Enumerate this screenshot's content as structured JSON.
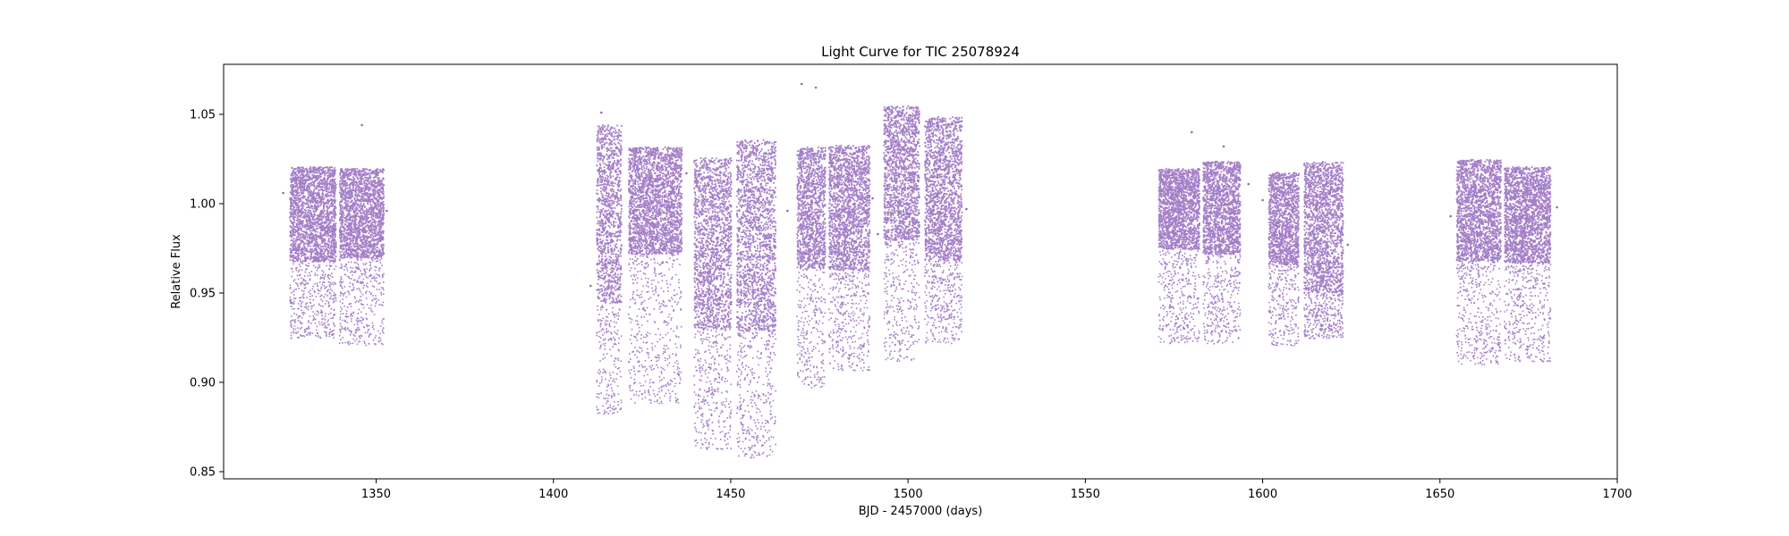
{
  "chart_data": {
    "type": "scatter",
    "title": "Light Curve for TIC 25078924",
    "xlabel": "BJD - 2457000 (days)",
    "ylabel": "Relative Flux",
    "xlim": [
      1307,
      1700
    ],
    "ylim": [
      0.846,
      1.078
    ],
    "x_ticks": [
      1350,
      1400,
      1450,
      1500,
      1550,
      1600,
      1650,
      1700
    ],
    "y_ticks": [
      0.85,
      0.9,
      0.95,
      1.0,
      1.05
    ],
    "x_tick_labels": [
      "1350",
      "1400",
      "1450",
      "1500",
      "1550",
      "1600",
      "1650",
      "1700"
    ],
    "y_tick_labels": [
      "0.85",
      "0.90",
      "0.95",
      "1.00",
      "1.05"
    ],
    "grid": false,
    "legend": "none",
    "marker_color": "#9467bd",
    "series": [
      {
        "segments": [
          {
            "x_start": 1325.5,
            "x_end": 1338.5,
            "upper_max": 1.021,
            "upper_min": 0.968,
            "lower_min": 0.925
          },
          {
            "x_start": 1339.5,
            "x_end": 1352.0,
            "upper_max": 1.02,
            "upper_min": 0.97,
            "lower_min": 0.921
          },
          {
            "x_start": 1412.0,
            "x_end": 1419.0,
            "upper_max": 1.045,
            "upper_min": 0.945,
            "lower_min": 0.882
          },
          {
            "x_start": 1421.0,
            "x_end": 1436.0,
            "upper_max": 1.032,
            "upper_min": 0.972,
            "lower_min": 0.888
          },
          {
            "x_start": 1439.5,
            "x_end": 1450.0,
            "upper_max": 1.026,
            "upper_min": 0.93,
            "lower_min": 0.863
          },
          {
            "x_start": 1451.5,
            "x_end": 1462.5,
            "upper_max": 1.036,
            "upper_min": 0.929,
            "lower_min": 0.858
          },
          {
            "x_start": 1468.5,
            "x_end": 1476.5,
            "upper_max": 1.032,
            "upper_min": 0.964,
            "lower_min": 0.897
          },
          {
            "x_start": 1477.5,
            "x_end": 1489.0,
            "upper_max": 1.033,
            "upper_min": 0.963,
            "lower_min": 0.907
          },
          {
            "x_start": 1493.0,
            "x_end": 1503.0,
            "upper_max": 1.055,
            "upper_min": 0.98,
            "lower_min": 0.912
          },
          {
            "x_start": 1504.5,
            "x_end": 1515.0,
            "upper_max": 1.049,
            "upper_min": 0.968,
            "lower_min": 0.922
          },
          {
            "x_start": 1570.5,
            "x_end": 1582.0,
            "upper_max": 1.02,
            "upper_min": 0.975,
            "lower_min": 0.922
          },
          {
            "x_start": 1583.0,
            "x_end": 1593.5,
            "upper_max": 1.024,
            "upper_min": 0.972,
            "lower_min": 0.922
          },
          {
            "x_start": 1601.5,
            "x_end": 1610.0,
            "upper_max": 1.018,
            "upper_min": 0.966,
            "lower_min": 0.921
          },
          {
            "x_start": 1611.5,
            "x_end": 1622.5,
            "upper_max": 1.024,
            "upper_min": 0.951,
            "lower_min": 0.925
          },
          {
            "x_start": 1654.5,
            "x_end": 1667.0,
            "upper_max": 1.025,
            "upper_min": 0.968,
            "lower_min": 0.91
          },
          {
            "x_start": 1668.0,
            "x_end": 1681.0,
            "upper_max": 1.021,
            "upper_min": 0.967,
            "lower_min": 0.912
          }
        ],
        "outliers": [
          {
            "x": 1323.8,
            "y": 1.006
          },
          {
            "x": 1353.0,
            "y": 0.996
          },
          {
            "x": 1346.0,
            "y": 1.044
          },
          {
            "x": 1410.5,
            "y": 0.954
          },
          {
            "x": 1413.5,
            "y": 1.051
          },
          {
            "x": 1437.5,
            "y": 1.017
          },
          {
            "x": 1466.0,
            "y": 0.996
          },
          {
            "x": 1470.0,
            "y": 1.067
          },
          {
            "x": 1474.0,
            "y": 1.065
          },
          {
            "x": 1490.0,
            "y": 1.003
          },
          {
            "x": 1491.5,
            "y": 0.983
          },
          {
            "x": 1516.5,
            "y": 0.997
          },
          {
            "x": 1580.0,
            "y": 1.04
          },
          {
            "x": 1589.0,
            "y": 1.032
          },
          {
            "x": 1596.0,
            "y": 1.011
          },
          {
            "x": 1600.0,
            "y": 1.002
          },
          {
            "x": 1624.0,
            "y": 0.977
          },
          {
            "x": 1653.0,
            "y": 0.993
          },
          {
            "x": 1683.0,
            "y": 0.998
          }
        ]
      }
    ]
  }
}
